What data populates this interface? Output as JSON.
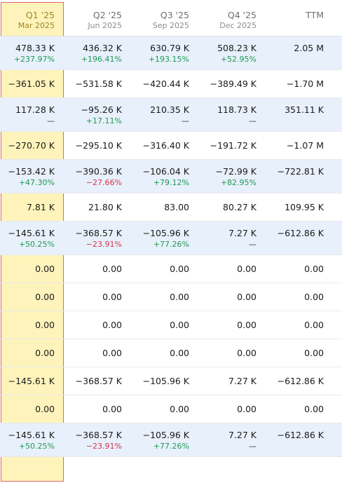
{
  "headers": [
    {
      "main": "Q1 '25",
      "sub": "Mar 2025"
    },
    {
      "main": "Q2 '25",
      "sub": "Jun 2025"
    },
    {
      "main": "Q3 '25",
      "sub": "Sep 2025"
    },
    {
      "main": "Q4 '25",
      "sub": "Dec 2025"
    },
    {
      "main": "TTM",
      "sub": ""
    }
  ],
  "rows": [
    {
      "highlight": true,
      "cells": [
        {
          "v": "478.33 K",
          "p": "+237.97%",
          "t": "pos"
        },
        {
          "v": "436.32 K",
          "p": "+196.41%",
          "t": "pos"
        },
        {
          "v": "630.79 K",
          "p": "+193.15%",
          "t": "pos"
        },
        {
          "v": "508.23 K",
          "p": "+52.95%",
          "t": "pos"
        },
        {
          "v": "2.05 M",
          "p": "",
          "t": ""
        }
      ]
    },
    {
      "highlight": false,
      "cells": [
        {
          "v": "−361.05 K"
        },
        {
          "v": "−531.58 K"
        },
        {
          "v": "−420.44 K"
        },
        {
          "v": "−389.49 K"
        },
        {
          "v": "−1.70 M"
        }
      ]
    },
    {
      "highlight": true,
      "cells": [
        {
          "v": "117.28 K",
          "p": "—",
          "t": "dash"
        },
        {
          "v": "−95.26 K",
          "p": "+17.11%",
          "t": "pos"
        },
        {
          "v": "210.35 K",
          "p": "—",
          "t": "dash"
        },
        {
          "v": "118.73 K",
          "p": "—",
          "t": "dash"
        },
        {
          "v": "351.11 K",
          "p": "",
          "t": ""
        }
      ]
    },
    {
      "highlight": false,
      "cells": [
        {
          "v": "−270.70 K"
        },
        {
          "v": "−295.10 K"
        },
        {
          "v": "−316.40 K"
        },
        {
          "v": "−191.72 K"
        },
        {
          "v": "−1.07 M"
        }
      ]
    },
    {
      "highlight": true,
      "cells": [
        {
          "v": "−153.42 K",
          "p": "+47.30%",
          "t": "pos"
        },
        {
          "v": "−390.36 K",
          "p": "−27.66%",
          "t": "neg"
        },
        {
          "v": "−106.04 K",
          "p": "+79.12%",
          "t": "pos"
        },
        {
          "v": "−72.99 K",
          "p": "+82.95%",
          "t": "pos"
        },
        {
          "v": "−722.81 K",
          "p": "",
          "t": ""
        }
      ]
    },
    {
      "highlight": false,
      "cells": [
        {
          "v": "7.81 K"
        },
        {
          "v": "21.80 K"
        },
        {
          "v": "83.00"
        },
        {
          "v": "80.27 K"
        },
        {
          "v": "109.95 K"
        }
      ]
    },
    {
      "highlight": true,
      "cells": [
        {
          "v": "−145.61 K",
          "p": "+50.25%",
          "t": "pos"
        },
        {
          "v": "−368.57 K",
          "p": "−23.91%",
          "t": "neg"
        },
        {
          "v": "−105.96 K",
          "p": "+77.26%",
          "t": "pos"
        },
        {
          "v": "7.27 K",
          "p": "—",
          "t": "dash"
        },
        {
          "v": "−612.86 K",
          "p": "",
          "t": ""
        }
      ]
    },
    {
      "highlight": false,
      "cells": [
        {
          "v": "0.00"
        },
        {
          "v": "0.00"
        },
        {
          "v": "0.00"
        },
        {
          "v": "0.00"
        },
        {
          "v": "0.00"
        }
      ]
    },
    {
      "highlight": false,
      "cells": [
        {
          "v": "0.00"
        },
        {
          "v": "0.00"
        },
        {
          "v": "0.00"
        },
        {
          "v": "0.00"
        },
        {
          "v": "0.00"
        }
      ]
    },
    {
      "highlight": false,
      "cells": [
        {
          "v": "0.00"
        },
        {
          "v": "0.00"
        },
        {
          "v": "0.00"
        },
        {
          "v": "0.00"
        },
        {
          "v": "0.00"
        }
      ]
    },
    {
      "highlight": false,
      "cells": [
        {
          "v": "0.00"
        },
        {
          "v": "0.00"
        },
        {
          "v": "0.00"
        },
        {
          "v": "0.00"
        },
        {
          "v": "0.00"
        }
      ]
    },
    {
      "highlight": false,
      "cells": [
        {
          "v": "−145.61 K"
        },
        {
          "v": "−368.57 K"
        },
        {
          "v": "−105.96 K"
        },
        {
          "v": "7.27 K"
        },
        {
          "v": "−612.86 K"
        }
      ]
    },
    {
      "highlight": false,
      "cells": [
        {
          "v": "0.00"
        },
        {
          "v": "0.00"
        },
        {
          "v": "0.00"
        },
        {
          "v": "0.00"
        },
        {
          "v": "0.00"
        }
      ]
    },
    {
      "highlight": true,
      "cells": [
        {
          "v": "−145.61 K",
          "p": "+50.25%",
          "t": "pos"
        },
        {
          "v": "−368.57 K",
          "p": "−23.91%",
          "t": "neg"
        },
        {
          "v": "−105.96 K",
          "p": "+77.26%",
          "t": "pos"
        },
        {
          "v": "7.27 K",
          "p": "—",
          "t": "dash"
        },
        {
          "v": "−612.86 K",
          "p": "",
          "t": ""
        }
      ]
    }
  ],
  "colors": {
    "positive": "#1e9a54",
    "negative": "#d6334b",
    "highlight_row": "#e8f0fb",
    "selected_column": "#fdf09e",
    "selected_border": "#e06666"
  }
}
